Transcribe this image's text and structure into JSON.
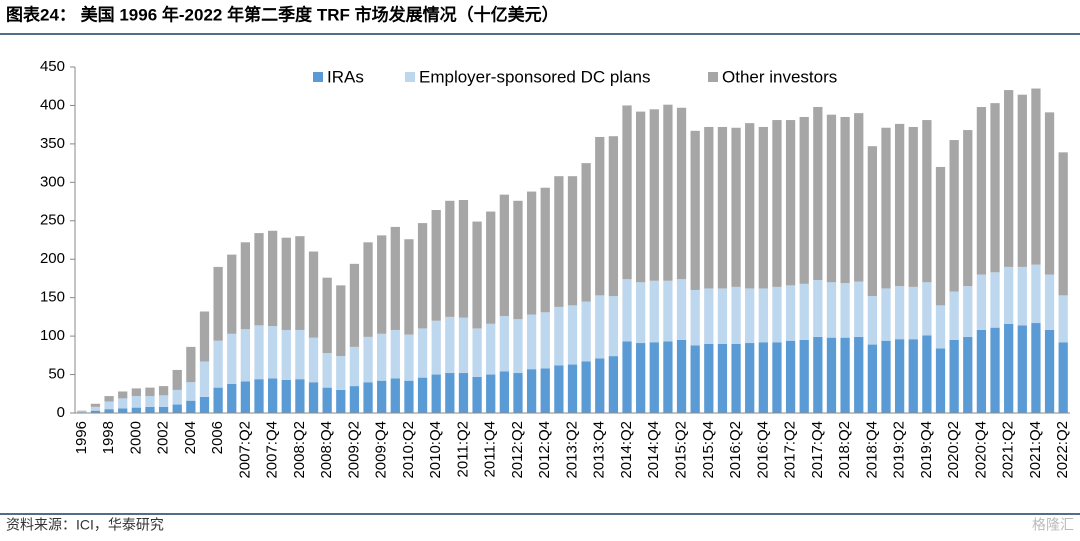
{
  "chart_data": {
    "type": "stacked_bar",
    "title": "图表24： 美国 1996 年-2022 年第二季度 TRF 市场发展情况（十亿美元）",
    "source": "资料来源：ICI，华泰研究",
    "watermark": "格隆汇",
    "legend": "top",
    "categories": [
      "1996",
      null,
      "1998",
      null,
      "2000",
      null,
      "2002",
      null,
      "2004",
      null,
      "2006",
      null,
      "2007:Q2",
      null,
      "2007:Q4",
      null,
      "2008:Q2",
      null,
      "2008:Q4",
      null,
      "2009:Q2",
      null,
      "2009:Q4",
      null,
      "2010:Q2",
      null,
      "2010:Q4",
      null,
      "2011:Q2",
      null,
      "2011:Q4",
      null,
      "2012:Q2",
      null,
      "2012:Q4",
      null,
      "2013:Q2",
      null,
      "2013:Q4",
      null,
      "2014:Q2",
      null,
      "2014:Q4",
      null,
      "2015:Q2",
      null,
      "2015:Q4",
      null,
      "2016:Q2",
      null,
      "2016:Q4",
      null,
      "2017:Q2",
      null,
      "2017:Q4",
      null,
      "2018:Q2",
      null,
      "2018:Q4",
      null,
      "2019:Q2",
      null,
      "2019:Q4",
      null,
      "2020:Q2",
      null,
      "2020:Q4",
      null,
      "2021:Q2",
      null,
      "2021:Q4",
      null,
      "2022:Q2"
    ],
    "series": [
      {
        "name": "IRAs",
        "color": "#5b9bd5",
        "values": [
          1,
          3,
          5,
          6,
          7,
          8,
          8,
          11,
          16,
          21,
          33,
          38,
          41,
          44,
          45,
          43,
          44,
          40,
          33,
          30,
          35,
          40,
          42,
          45,
          42,
          46,
          50,
          52,
          52,
          47,
          50,
          54,
          52,
          57,
          58,
          62,
          63,
          67,
          71,
          74,
          93,
          91,
          92,
          93,
          95,
          88,
          90,
          90,
          90,
          91,
          92,
          92,
          94,
          95,
          99,
          98,
          98,
          99,
          89,
          94,
          96,
          96,
          101,
          84,
          95,
          99,
          108,
          111,
          116,
          114,
          117,
          108,
          92
        ]
      },
      {
        "name": "Employer-sponsored DC plans",
        "color": "#bdd7ee",
        "values": [
          1,
          5,
          10,
          13,
          15,
          14,
          15,
          19,
          24,
          46,
          61,
          65,
          68,
          70,
          68,
          65,
          64,
          58,
          45,
          44,
          51,
          59,
          61,
          63,
          60,
          64,
          70,
          73,
          72,
          63,
          66,
          72,
          70,
          71,
          73,
          76,
          77,
          78,
          82,
          78,
          81,
          79,
          80,
          79,
          79,
          72,
          72,
          72,
          74,
          71,
          70,
          72,
          72,
          73,
          74,
          72,
          71,
          72,
          63,
          68,
          69,
          68,
          69,
          56,
          63,
          66,
          72,
          72,
          74,
          76,
          76,
          72,
          61
        ]
      },
      {
        "name": "Other investors",
        "color": "#a6a6a6",
        "values": [
          1,
          4,
          7,
          9,
          10,
          11,
          12,
          26,
          46,
          65,
          96,
          103,
          113,
          120,
          124,
          120,
          122,
          112,
          98,
          92,
          108,
          123,
          128,
          134,
          124,
          137,
          144,
          151,
          153,
          139,
          146,
          158,
          154,
          160,
          162,
          170,
          168,
          180,
          206,
          208,
          226,
          222,
          223,
          229,
          223,
          207,
          210,
          210,
          207,
          215,
          210,
          217,
          215,
          217,
          225,
          218,
          216,
          219,
          195,
          209,
          211,
          208,
          211,
          180,
          197,
          203,
          218,
          220,
          230,
          224,
          229,
          211,
          186
        ]
      }
    ],
    "ylim": [
      0,
      450
    ],
    "yticks": [
      0,
      50,
      100,
      150,
      200,
      250,
      300,
      350,
      400,
      450
    ]
  }
}
